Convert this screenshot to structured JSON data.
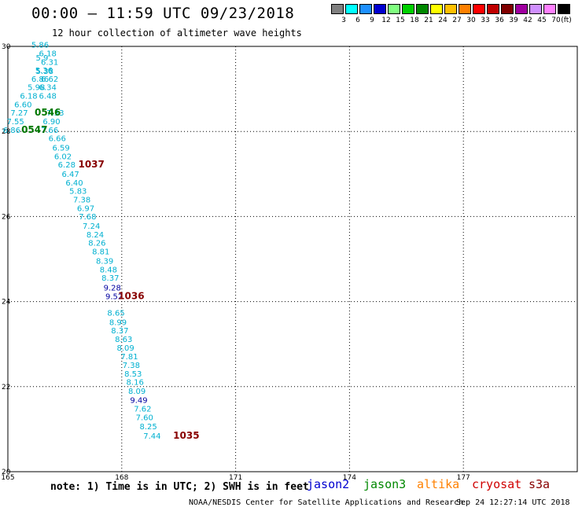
{
  "header": {
    "title": "00:00 – 11:59 UTC 09/23/2018",
    "subtitle": "12 hour collection of altimeter wave heights"
  },
  "color_scale": {
    "unit": "(ft)",
    "items": [
      {
        "label": "3",
        "color": "#808080"
      },
      {
        "label": "6",
        "color": "#00ffff"
      },
      {
        "label": "9",
        "color": "#1e90ff"
      },
      {
        "label": "12",
        "color": "#0000d0"
      },
      {
        "label": "15",
        "color": "#80ff80"
      },
      {
        "label": "18",
        "color": "#00d000"
      },
      {
        "label": "21",
        "color": "#008800"
      },
      {
        "label": "24",
        "color": "#ffff00"
      },
      {
        "label": "27",
        "color": "#ffc000"
      },
      {
        "label": "30",
        "color": "#ff8000"
      },
      {
        "label": "33",
        "color": "#ff0000"
      },
      {
        "label": "36",
        "color": "#c00000"
      },
      {
        "label": "39",
        "color": "#800000"
      },
      {
        "label": "42",
        "color": "#a000a0"
      },
      {
        "label": "45",
        "color": "#d090ff"
      },
      {
        "label": "70",
        "color": "#ff80ff"
      },
      {
        "label": "",
        "color": "#000000"
      }
    ]
  },
  "map": {
    "lon_ticks": [
      "165",
      "168",
      "171",
      "174",
      "177"
    ],
    "lat_ticks": [
      "30",
      "28",
      "26",
      "24",
      "22",
      "20"
    ]
  },
  "chart_data": {
    "type": "scatter",
    "xlim": [
      165,
      180
    ],
    "ylim": [
      20,
      30
    ],
    "grid": true,
    "title": "00:00 – 11:59 UTC 09/23/2018",
    "subtitle": "12 hour collection of altimeter wave heights",
    "series": [
      {
        "name": "jason3",
        "color": "#00b0d0",
        "points": [
          {
            "lon": 165.85,
            "lat": 29.97,
            "value": "5.86"
          },
          {
            "lon": 166.05,
            "lat": 29.77,
            "value": "6.18"
          },
          {
            "lon": 165.9,
            "lat": 29.67,
            "value": "5.9"
          },
          {
            "lon": 166.1,
            "lat": 29.57,
            "value": "6.31"
          },
          {
            "lon": 165.95,
            "lat": 29.37,
            "value": "5.36"
          },
          {
            "lon": 165.97,
            "lat": 29.35,
            "value": "5.38"
          },
          {
            "lon": 165.85,
            "lat": 29.17,
            "value": "6.86"
          },
          {
            "lon": 166.1,
            "lat": 29.17,
            "value": "6.62"
          },
          {
            "lon": 165.75,
            "lat": 28.97,
            "value": "5.98"
          },
          {
            "lon": 166.05,
            "lat": 28.97,
            "value": "6.34"
          },
          {
            "lon": 165.55,
            "lat": 28.77,
            "value": "6.18"
          },
          {
            "lon": 166.05,
            "lat": 28.77,
            "value": "6.48"
          },
          {
            "lon": 165.4,
            "lat": 28.57,
            "value": "6.60"
          },
          {
            "lon": 165.3,
            "lat": 28.37,
            "value": "7.27"
          },
          {
            "lon": 166.25,
            "lat": 28.37,
            "value": "7.33"
          },
          {
            "lon": 165.2,
            "lat": 28.17,
            "value": "7.55"
          },
          {
            "lon": 166.15,
            "lat": 28.17,
            "value": "6.90"
          },
          {
            "lon": 165.1,
            "lat": 27.97,
            "value": "6.86"
          },
          {
            "lon": 166.1,
            "lat": 27.97,
            "value": "7.66"
          },
          {
            "lon": 166.3,
            "lat": 27.77,
            "value": "6.66"
          },
          {
            "lon": 166.4,
            "lat": 27.55,
            "value": "6.59"
          },
          {
            "lon": 166.45,
            "lat": 27.35,
            "value": "6.02"
          },
          {
            "lon": 166.55,
            "lat": 27.15,
            "value": "6.28"
          },
          {
            "lon": 166.65,
            "lat": 26.93,
            "value": "6.47"
          },
          {
            "lon": 166.75,
            "lat": 26.73,
            "value": "6.40"
          },
          {
            "lon": 166.85,
            "lat": 26.53,
            "value": "5.83"
          },
          {
            "lon": 166.95,
            "lat": 26.33,
            "value": "7.38"
          },
          {
            "lon": 167.05,
            "lat": 26.13,
            "value": "6.97"
          },
          {
            "lon": 167.1,
            "lat": 25.93,
            "value": "7.68"
          },
          {
            "lon": 167.2,
            "lat": 25.71,
            "value": "7.24"
          },
          {
            "lon": 167.3,
            "lat": 25.51,
            "value": "8.24"
          },
          {
            "lon": 167.35,
            "lat": 25.31,
            "value": "8.26"
          },
          {
            "lon": 167.45,
            "lat": 25.11,
            "value": "8.81"
          },
          {
            "lon": 167.55,
            "lat": 24.89,
            "value": "8.39"
          },
          {
            "lon": 167.65,
            "lat": 24.69,
            "value": "8.48"
          },
          {
            "lon": 167.7,
            "lat": 24.49,
            "value": "8.37"
          },
          {
            "lon": 167.85,
            "lat": 23.67,
            "value": "8.65"
          },
          {
            "lon": 167.9,
            "lat": 23.45,
            "value": "8.99"
          },
          {
            "lon": 167.95,
            "lat": 23.25,
            "value": "8.37"
          },
          {
            "lon": 168.05,
            "lat": 23.05,
            "value": "8.63"
          },
          {
            "lon": 168.1,
            "lat": 22.85,
            "value": "8.09"
          },
          {
            "lon": 168.2,
            "lat": 22.64,
            "value": "7.81"
          },
          {
            "lon": 168.25,
            "lat": 22.44,
            "value": "7.38"
          },
          {
            "lon": 168.3,
            "lat": 22.24,
            "value": "8.53"
          },
          {
            "lon": 168.35,
            "lat": 22.04,
            "value": "8.16"
          },
          {
            "lon": 168.4,
            "lat": 21.83,
            "value": "8.09"
          },
          {
            "lon": 168.55,
            "lat": 21.41,
            "value": "7.62"
          },
          {
            "lon": 168.6,
            "lat": 21.21,
            "value": "7.60"
          },
          {
            "lon": 168.7,
            "lat": 21.0,
            "value": "8.25"
          },
          {
            "lon": 168.8,
            "lat": 20.78,
            "value": "7.44"
          }
        ]
      },
      {
        "name": "jason2",
        "color": "#0000a0",
        "points": [
          {
            "lon": 167.75,
            "lat": 24.26,
            "value": "9.28"
          },
          {
            "lon": 167.8,
            "lat": 24.06,
            "value": "9.52"
          },
          {
            "lon": 168.45,
            "lat": 21.62,
            "value": "9.49"
          }
        ]
      }
    ],
    "time_markers": [
      {
        "label": "0546",
        "lon": 166.05,
        "lat": 28.37,
        "color": "#007700"
      },
      {
        "label": "0547",
        "lon": 165.7,
        "lat": 27.97,
        "color": "#007700"
      },
      {
        "label": "1037",
        "lon": 167.2,
        "lat": 27.15,
        "color": "#880000"
      },
      {
        "label": "1036",
        "lon": 168.25,
        "lat": 24.06,
        "color": "#880000"
      },
      {
        "label": "1035",
        "lon": 169.7,
        "lat": 20.78,
        "color": "#880000"
      }
    ]
  },
  "footer": {
    "note": "note: 1) Time is in UTC; 2) SWH is in feet",
    "satellites": [
      {
        "name": "jason2",
        "color": "#0000d0"
      },
      {
        "name": "jason3",
        "color": "#008800"
      },
      {
        "name": "altika",
        "color": "#ff8000"
      },
      {
        "name": "cryosat",
        "color": "#d00000"
      },
      {
        "name": "s3a",
        "color": "#880000"
      }
    ],
    "credit": "NOAA/NESDIS Center for Satellite Applications and Research",
    "timestamp": "Sep 24 12:27:14 UTC 2018"
  }
}
